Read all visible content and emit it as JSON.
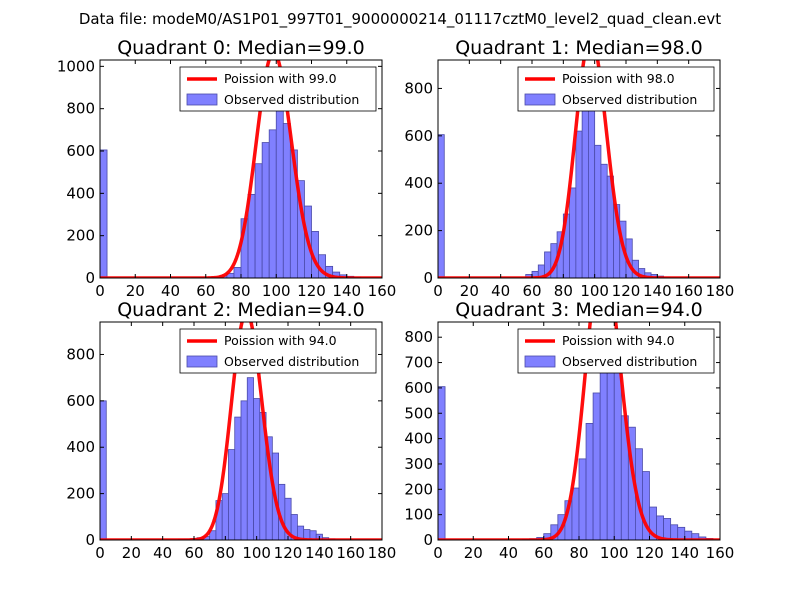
{
  "figure": {
    "suptitle": "Data file: modeM0/AS1P01_997T01_9000000214_01117cztM0_level2_quad_clean.evt"
  },
  "colors": {
    "bar_fill": "#8080ff",
    "bar_edge": "#4a4aa8",
    "poisson_line": "#ff0000",
    "axis": "#000000",
    "background": "#ffffff"
  },
  "chart_data": [
    {
      "type": "bar",
      "title": "Quadrant 0: Median=99.0",
      "xlim": [
        0,
        160
      ],
      "ylim": [
        0,
        1030
      ],
      "xticks": [
        0,
        20,
        40,
        60,
        80,
        100,
        120,
        140,
        160
      ],
      "yticks": [
        0,
        200,
        400,
        600,
        800,
        1000
      ],
      "bin_width": 4,
      "bins": [
        [
          0,
          605
        ],
        [
          52,
          2
        ],
        [
          56,
          3
        ],
        [
          60,
          4
        ],
        [
          64,
          5
        ],
        [
          68,
          10
        ],
        [
          72,
          22
        ],
        [
          76,
          50
        ],
        [
          80,
          280
        ],
        [
          84,
          395
        ],
        [
          88,
          540
        ],
        [
          92,
          640
        ],
        [
          96,
          700
        ],
        [
          100,
          810
        ],
        [
          104,
          730
        ],
        [
          108,
          605
        ],
        [
          112,
          460
        ],
        [
          116,
          340
        ],
        [
          120,
          220
        ],
        [
          124,
          110
        ],
        [
          128,
          55
        ],
        [
          132,
          28
        ],
        [
          136,
          15
        ],
        [
          140,
          8
        ],
        [
          144,
          4
        ]
      ],
      "poisson_mean": 99,
      "legend": {
        "line": "Poission with 99.0",
        "bars": "Observed distribution",
        "position": "upper-right"
      }
    },
    {
      "type": "bar",
      "title": "Quadrant 1: Median=98.0",
      "xlim": [
        0,
        180
      ],
      "ylim": [
        0,
        920
      ],
      "xticks": [
        0,
        20,
        40,
        60,
        80,
        100,
        120,
        140,
        160,
        180
      ],
      "yticks": [
        0,
        200,
        400,
        600,
        800
      ],
      "bin_width": 4,
      "bins": [
        [
          0,
          605
        ],
        [
          56,
          15
        ],
        [
          60,
          28
        ],
        [
          64,
          55
        ],
        [
          68,
          110
        ],
        [
          72,
          145
        ],
        [
          76,
          195
        ],
        [
          80,
          270
        ],
        [
          84,
          380
        ],
        [
          88,
          620
        ],
        [
          92,
          760
        ],
        [
          96,
          760
        ],
        [
          100,
          560
        ],
        [
          104,
          480
        ],
        [
          108,
          430
        ],
        [
          112,
          310
        ],
        [
          116,
          240
        ],
        [
          120,
          165
        ],
        [
          124,
          75
        ],
        [
          128,
          40
        ],
        [
          132,
          22
        ],
        [
          136,
          15
        ],
        [
          140,
          8
        ],
        [
          144,
          4
        ]
      ],
      "poisson_mean": 98,
      "legend": {
        "line": "Poission with 98.0",
        "bars": "Observed distribution",
        "position": "upper-right"
      }
    },
    {
      "type": "bar",
      "title": "Quadrant 2: Median=94.0",
      "xlim": [
        0,
        180
      ],
      "ylim": [
        0,
        940
      ],
      "xticks": [
        0,
        20,
        40,
        60,
        80,
        100,
        120,
        140,
        160,
        180
      ],
      "yticks": [
        0,
        200,
        400,
        600,
        800
      ],
      "bin_width": 4,
      "bins": [
        [
          0,
          600
        ],
        [
          50,
          3
        ],
        [
          54,
          4
        ],
        [
          58,
          6
        ],
        [
          62,
          10
        ],
        [
          66,
          15
        ],
        [
          70,
          40
        ],
        [
          74,
          170
        ],
        [
          78,
          200
        ],
        [
          82,
          390
        ],
        [
          86,
          530
        ],
        [
          90,
          600
        ],
        [
          94,
          700
        ],
        [
          98,
          610
        ],
        [
          102,
          550
        ],
        [
          106,
          445
        ],
        [
          110,
          375
        ],
        [
          114,
          240
        ],
        [
          118,
          180
        ],
        [
          122,
          110
        ],
        [
          126,
          60
        ],
        [
          130,
          45
        ],
        [
          134,
          40
        ],
        [
          138,
          25
        ],
        [
          142,
          10
        ],
        [
          146,
          5
        ]
      ],
      "poisson_mean": 94,
      "legend": {
        "line": "Poission with 94.0",
        "bars": "Observed distribution",
        "position": "upper-right"
      }
    },
    {
      "type": "bar",
      "title": "Quadrant 3: Median=94.0",
      "xlim": [
        0,
        160
      ],
      "ylim": [
        0,
        860
      ],
      "xticks": [
        0,
        20,
        40,
        60,
        80,
        100,
        120,
        140,
        160
      ],
      "yticks": [
        0,
        100,
        200,
        300,
        400,
        500,
        600,
        700,
        800
      ],
      "bin_width": 4,
      "bins": [
        [
          0,
          605
        ],
        [
          48,
          3
        ],
        [
          52,
          5
        ],
        [
          56,
          10
        ],
        [
          60,
          25
        ],
        [
          64,
          60
        ],
        [
          68,
          100
        ],
        [
          72,
          155
        ],
        [
          76,
          205
        ],
        [
          80,
          320
        ],
        [
          84,
          460
        ],
        [
          88,
          580
        ],
        [
          92,
          820
        ],
        [
          96,
          810
        ],
        [
          100,
          670
        ],
        [
          104,
          490
        ],
        [
          108,
          445
        ],
        [
          112,
          360
        ],
        [
          116,
          270
        ],
        [
          120,
          130
        ],
        [
          124,
          95
        ],
        [
          128,
          85
        ],
        [
          132,
          60
        ],
        [
          136,
          50
        ],
        [
          140,
          35
        ],
        [
          144,
          25
        ],
        [
          148,
          12
        ],
        [
          152,
          6
        ]
      ],
      "poisson_mean": 94,
      "legend": {
        "line": "Poission with 94.0",
        "bars": "Observed distribution",
        "position": "upper-right"
      }
    }
  ]
}
